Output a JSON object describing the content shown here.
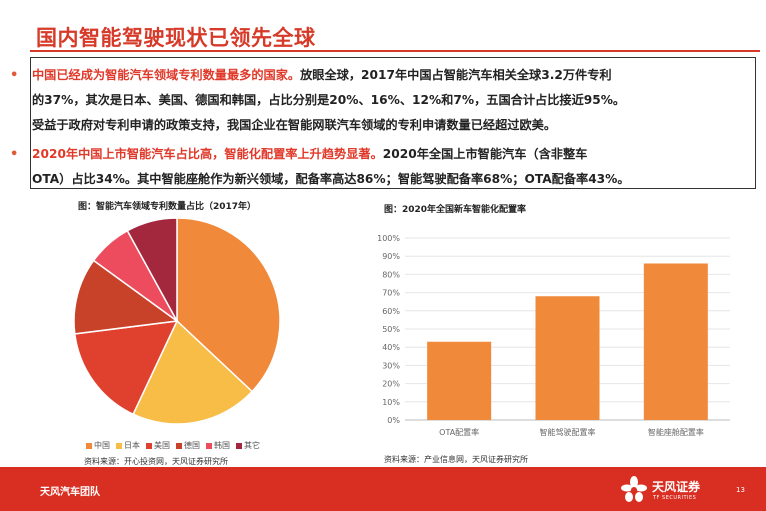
{
  "page": {
    "title": "国内智能驾驶现状已领先全球",
    "page_number": "13"
  },
  "bullets": [
    {
      "highlight": "中国已经成为智能汽车领域专利数量最多的国家。",
      "line1_rest": "放眼全球，2017年中国占智能汽车相关全球3.2万件专利",
      "line2": "的37%，其次是日本、美国、德国和韩国，占比分别是20%、16%、12%和7%，五国合计占比接近95%。",
      "line3": "受益于政府对专利申请的政策支持，我国企业在智能网联汽车领域的专利申请数量已经超过欧美。"
    },
    {
      "highlight": "2020年中国上市智能汽车占比高，智能化配置率上升趋势显著。",
      "line1_rest": "2020年全国上市智能汽车（含非整车",
      "line2": "OTA）占比34%。其中智能座舱作为新兴领域，配备率高达86%；智能驾驶配备率68%；OTA配备率43%。"
    }
  ],
  "left_figure": {
    "caption": "图：智能汽车领域专利数量占比（2017年）",
    "source": "资料来源：开心投资网，天风证券研究所"
  },
  "right_figure": {
    "caption": "图：2020年全国新车智能化配置率",
    "source": "资料来源：产业信息网，天风证券研究所"
  },
  "chart_data": [
    {
      "type": "pie",
      "categories": [
        "中国",
        "日本",
        "美国",
        "德国",
        "韩国",
        "其它"
      ],
      "values": [
        37,
        20,
        16,
        12,
        7,
        8
      ],
      "colors": [
        "#f0893a",
        "#f7bd47",
        "#e0412e",
        "#c84129",
        "#ec4c5e",
        "#a3283e"
      ],
      "legend_position": "bottom"
    },
    {
      "type": "bar",
      "categories": [
        "OTA配置率",
        "智能驾驶配置率",
        "智能座舱配置率"
      ],
      "values": [
        43,
        68,
        86
      ],
      "color": "#f0893a",
      "ylim": [
        0,
        100
      ],
      "yticks": [
        "0%",
        "10%",
        "20%",
        "30%",
        "40%",
        "50%",
        "60%",
        "70%",
        "80%",
        "90%",
        "100%"
      ],
      "grid": true
    }
  ],
  "footer": {
    "team": "天风汽车团队",
    "logo_text": "天风证券",
    "logo_sub": "TF SECURITIES"
  }
}
